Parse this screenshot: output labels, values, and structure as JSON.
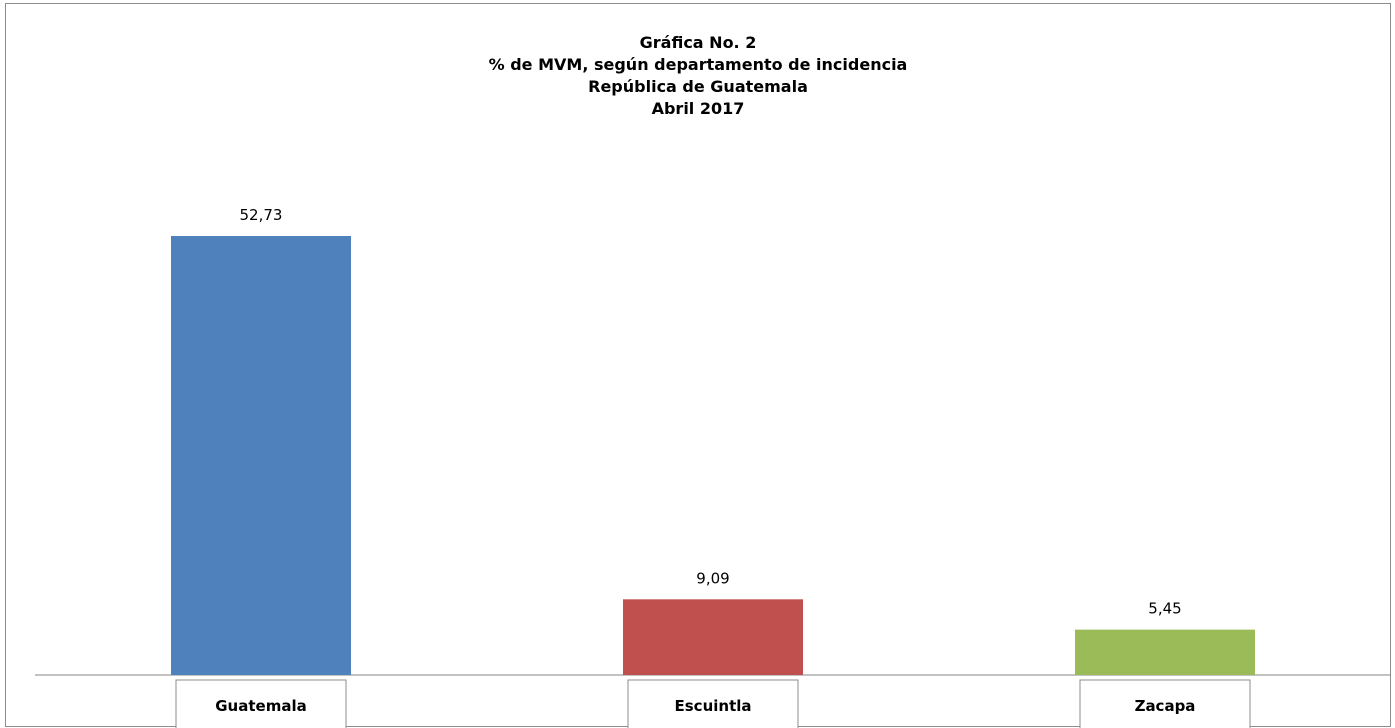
{
  "chart_data": {
    "type": "bar",
    "title_lines": [
      "Gráfica No. 2",
      "% de MVM, según departamento de incidencia",
      "República de Guatemala",
      "Abril  2017"
    ],
    "categories": [
      "Guatemala",
      "Escuintla",
      "Zacapa"
    ],
    "values": [
      52.73,
      9.09,
      5.45
    ],
    "value_labels": [
      "52,73",
      "9,09",
      "5,45"
    ],
    "colors": [
      "#4f81bd",
      "#c0504d",
      "#9bbb59"
    ],
    "xlabel": "",
    "ylabel": "",
    "ylim": [
      0,
      60
    ],
    "grid": false,
    "legend": "none"
  }
}
